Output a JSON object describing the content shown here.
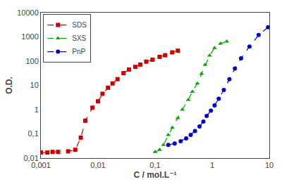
{
  "chart_data": {
    "type": "line",
    "xlabel": "C / mol.L⁻¹",
    "ylabel": "O.D.",
    "log": true,
    "grid": false,
    "legend": "upper left",
    "series": [
      {
        "name": "SDS",
        "color": "#cc0000",
        "marker": "square",
        "line_style": "dashed",
        "x": [
          0.001,
          0.0013,
          0.0016,
          0.002,
          0.003,
          0.004,
          0.005,
          0.006,
          0.008,
          0.01,
          0.012,
          0.015,
          0.018,
          0.022,
          0.028,
          0.035,
          0.045,
          0.055,
          0.07,
          0.09,
          0.12,
          0.15,
          0.2,
          0.25
        ],
        "values": [
          0.017,
          0.017,
          0.018,
          0.018,
          0.019,
          0.022,
          0.07,
          0.35,
          1.2,
          2.2,
          4.5,
          8.0,
          12.0,
          18.0,
          32.0,
          45.0,
          58.0,
          72.0,
          95.0,
          115.0,
          150.0,
          175.0,
          230.0,
          270.0
        ]
      },
      {
        "name": "SXS",
        "color": "#00aa00",
        "marker": "triangle-up",
        "line_style": "dashed",
        "x": [
          0.1,
          0.12,
          0.14,
          0.17,
          0.2,
          0.25,
          0.3,
          0.38,
          0.45,
          0.55,
          0.65,
          0.75,
          0.9,
          1.1,
          1.4,
          1.8
        ],
        "values": [
          0.018,
          0.022,
          0.035,
          0.09,
          0.18,
          0.45,
          1.0,
          2.5,
          5.5,
          12.0,
          30.0,
          70.0,
          170.0,
          350.0,
          530.0,
          650.0
        ]
      },
      {
        "name": "PnP",
        "color": "#0000cc",
        "marker": "circle",
        "line_style": "dashed",
        "x": [
          0.17,
          0.22,
          0.28,
          0.35,
          0.42,
          0.5,
          0.6,
          0.7,
          0.8,
          0.95,
          1.1,
          1.3,
          1.6,
          2.0,
          2.5,
          3.2,
          4.5,
          6.5,
          9.5
        ],
        "values": [
          0.035,
          0.04,
          0.05,
          0.065,
          0.09,
          0.13,
          0.2,
          0.32,
          0.55,
          0.9,
          1.5,
          2.8,
          6.5,
          18.0,
          50.0,
          130.0,
          400.0,
          1200.0,
          2500.0
        ]
      }
    ],
    "xlim": [
      0.001,
      10
    ],
    "xticks": [
      {
        "value": 0.001,
        "label": "0,001"
      },
      {
        "value": 0.01,
        "label": "0,01"
      },
      {
        "value": 0.1,
        "label": "0,1"
      },
      1,
      10
    ],
    "ylim": [
      0.01,
      10000
    ],
    "yticks": [
      {
        "value": 0.01,
        "label": "0,01"
      },
      {
        "value": 0.1,
        "label": "0,1"
      },
      1,
      10,
      100,
      1000,
      10000
    ]
  }
}
